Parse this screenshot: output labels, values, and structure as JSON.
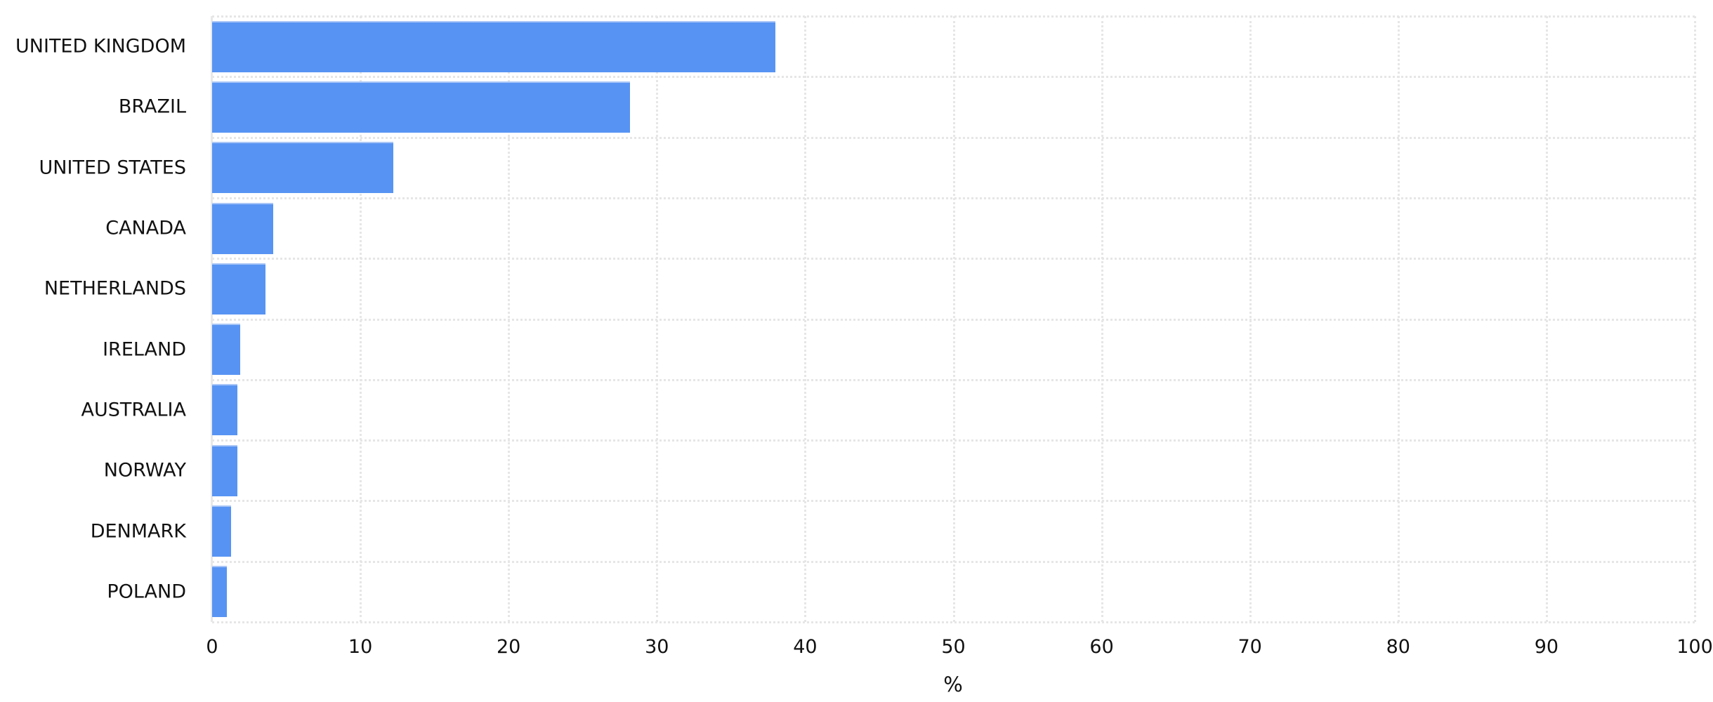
{
  "chart_data": {
    "type": "bar",
    "orientation": "horizontal",
    "title": "",
    "xlabel": "%",
    "ylabel": "",
    "xlim": [
      0,
      100
    ],
    "xticks": [
      "0",
      "10",
      "20",
      "30",
      "40",
      "50",
      "60",
      "70",
      "80",
      "90",
      "100"
    ],
    "categories": [
      "UNITED KINGDOM",
      "BRAZIL",
      "UNITED STATES",
      "CANADA",
      "NETHERLANDS",
      "IRELAND",
      "AUSTRALIA",
      "NORWAY",
      "DENMARK",
      "POLAND"
    ],
    "values": [
      38.0,
      28.2,
      12.2,
      4.1,
      3.6,
      1.9,
      1.7,
      1.7,
      1.3,
      1.0
    ],
    "grid": true,
    "legend": null,
    "colors": {
      "bar": "#5793f3",
      "grid": "#e6e6e6"
    }
  }
}
